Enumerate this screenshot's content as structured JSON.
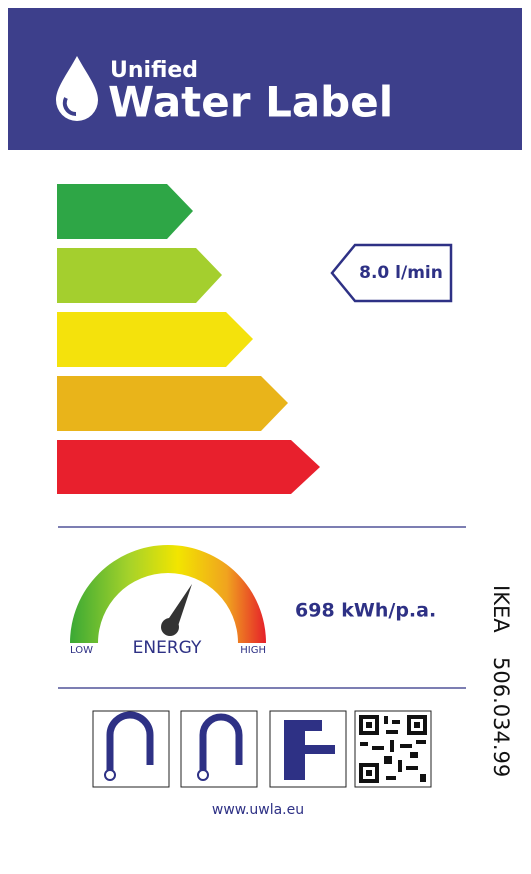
{
  "header": {
    "title_small": "Unified",
    "title_large": "Water Label"
  },
  "flow_rate": "8.0 l/min",
  "energy": {
    "low": "LOW",
    "label": "ENERGY",
    "high": "HIGH",
    "consumption": "698 kWh/p.a."
  },
  "product": {
    "brand": "IKEA",
    "article": "506.034.99"
  },
  "footer": {
    "url": "www.uwla.eu"
  }
}
